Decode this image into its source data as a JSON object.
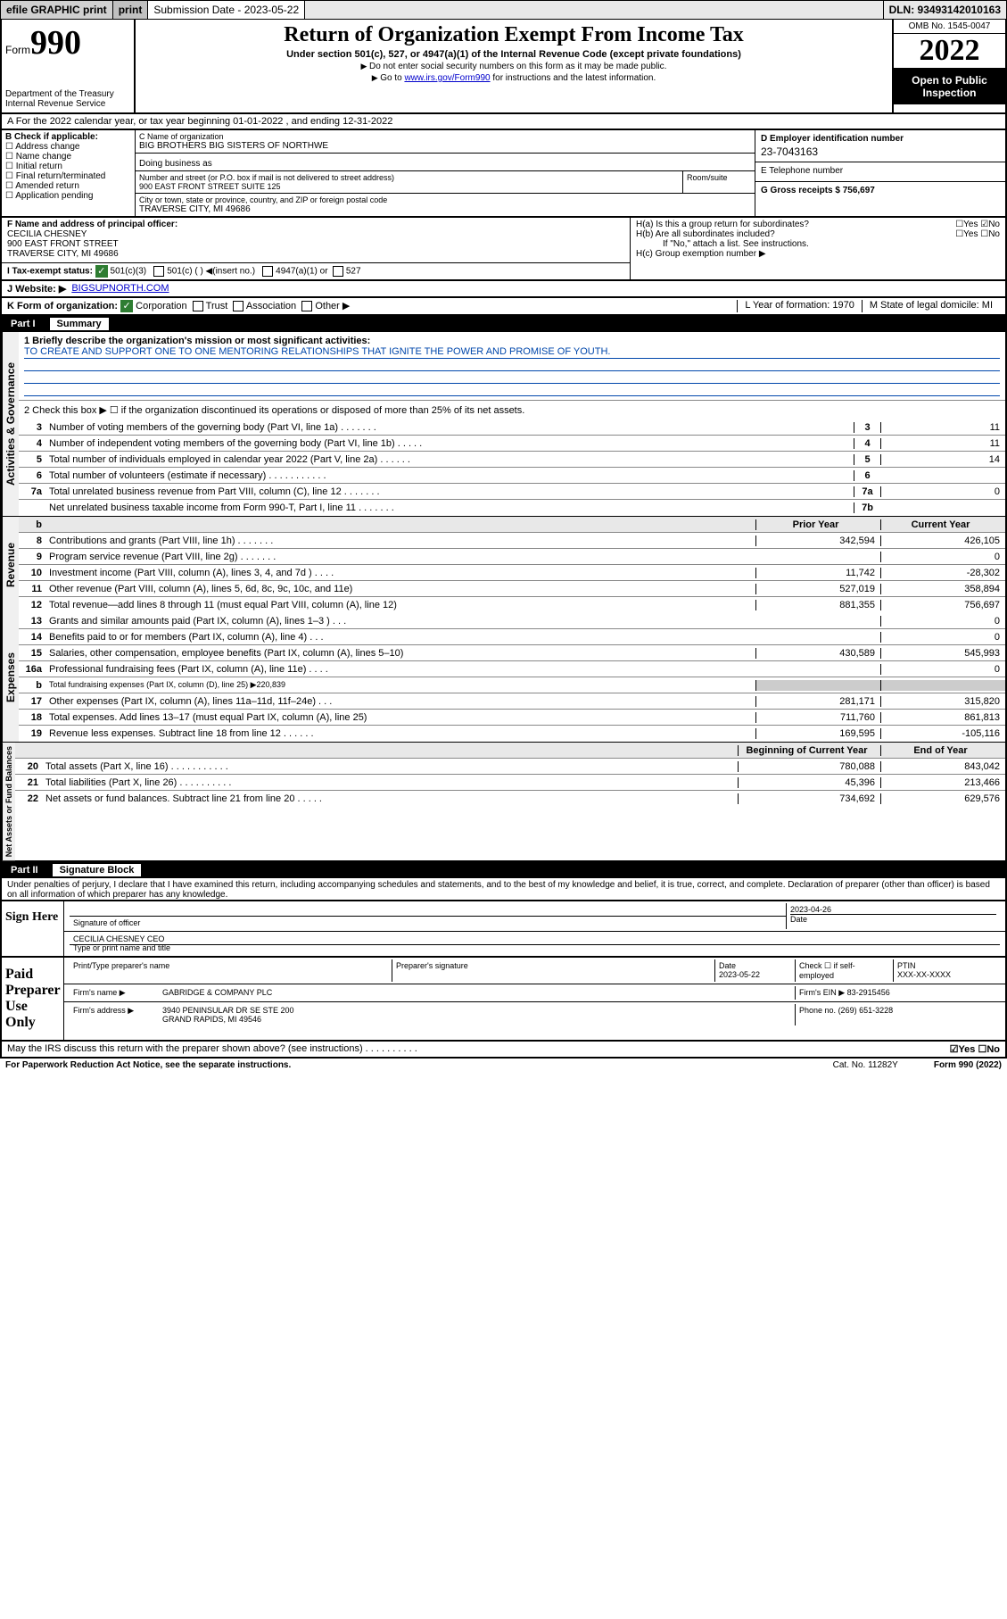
{
  "topbar": {
    "efile": "efile GRAPHIC print",
    "submission_label": "Submission Date - 2023-05-22",
    "dln": "DLN: 93493142010163"
  },
  "header": {
    "form_word": "Form",
    "form_num": "990",
    "dept": "Department of the Treasury Internal Revenue Service",
    "title": "Return of Organization Exempt From Income Tax",
    "subtitle": "Under section 501(c), 527, or 4947(a)(1) of the Internal Revenue Code (except private foundations)",
    "note1": "Do not enter social security numbers on this form as it may be made public.",
    "note2_pre": "Go to ",
    "note2_link": "www.irs.gov/Form990",
    "note2_post": " for instructions and the latest information.",
    "omb": "OMB No. 1545-0047",
    "year": "2022",
    "open": "Open to Public Inspection"
  },
  "rowA": "A For the 2022 calendar year, or tax year beginning 01-01-2022   , and ending 12-31-2022",
  "boxB": {
    "label": "B Check if applicable:",
    "items": [
      "Address change",
      "Name change",
      "Initial return",
      "Final return/terminated",
      "Amended return",
      "Application pending"
    ]
  },
  "boxC": {
    "label": "C Name of organization",
    "name": "BIG BROTHERS BIG SISTERS OF NORTHWE",
    "dba_label": "Doing business as",
    "addr_label": "Number and street (or P.O. box if mail is not delivered to street address)",
    "room_label": "Room/suite",
    "addr": "900 EAST FRONT STREET SUITE 125",
    "city_label": "City or town, state or province, country, and ZIP or foreign postal code",
    "city": "TRAVERSE CITY, MI  49686"
  },
  "boxD": {
    "label": "D Employer identification number",
    "val": "23-7043163"
  },
  "boxE": {
    "label": "E Telephone number",
    "val": ""
  },
  "boxG": {
    "label": "G Gross receipts $ 756,697"
  },
  "boxF": {
    "label": "F Name and address of principal officer:",
    "name": "CECILIA CHESNEY",
    "addr1": "900 EAST FRONT STREET",
    "addr2": "TRAVERSE CITY, MI  49686"
  },
  "boxH": {
    "a": "H(a)  Is this a group return for subordinates?",
    "a_ans": "☐Yes ☑No",
    "b": "H(b)  Are all subordinates included?",
    "b_ans": "☐Yes ☐No",
    "b_note": "If \"No,\" attach a list. See instructions.",
    "c": "H(c)  Group exemption number ▶"
  },
  "taxexempt": {
    "label": "I    Tax-exempt status:",
    "c3": "501(c)(3)",
    "c": "501(c) (  ) ◀(insert no.)",
    "a1": "4947(a)(1) or",
    "527": "527"
  },
  "rowJ": {
    "label": "J   Website: ▶",
    "val": "BIGSUPNORTH.COM"
  },
  "rowK": {
    "label": "K Form of organization:",
    "corp": "Corporation",
    "trust": "Trust",
    "assoc": "Association",
    "other": "Other ▶",
    "L": "L Year of formation: 1970",
    "M": "M State of legal domicile: MI"
  },
  "partI": {
    "title_pt": "Part I",
    "title": "Summary",
    "briefly_label": "1   Briefly describe the organization's mission or most significant activities:",
    "mission": "TO CREATE AND SUPPORT ONE TO ONE MENTORING RELATIONSHIPS THAT IGNITE THE POWER AND PROMISE OF YOUTH.",
    "line2": "2   Check this box ▶ ☐  if the organization discontinued its operations or disposed of more than 25% of its net assets.",
    "sections": {
      "gov": "Activities & Governance",
      "rev": "Revenue",
      "exp": "Expenses",
      "net": "Net Assets or Fund Balances"
    },
    "hdr_prior": "Prior Year",
    "hdr_curr": "Current Year",
    "hdr_begin": "Beginning of Current Year",
    "hdr_end": "End of Year",
    "gov_lines": [
      {
        "n": "3",
        "d": "Number of voting members of the governing body (Part VI, line 1a)  .    .    .    .    .    .    .",
        "b": "3",
        "v": "11"
      },
      {
        "n": "4",
        "d": "Number of independent voting members of the governing body (Part VI, line 1b)   .    .    .    .    .",
        "b": "4",
        "v": "11"
      },
      {
        "n": "5",
        "d": "Total number of individuals employed in calendar year 2022 (Part V, line 2a)   .    .    .    .    .    .",
        "b": "5",
        "v": "14"
      },
      {
        "n": "6",
        "d": "Total number of volunteers (estimate if necessary)   .    .    .    .    .    .    .    .    .    .    .",
        "b": "6",
        "v": ""
      },
      {
        "n": "7a",
        "d": "Total unrelated business revenue from Part VIII, column (C), line 12   .    .    .    .    .    .    .",
        "b": "7a",
        "v": "0"
      },
      {
        "n": "",
        "d": "Net unrelated business taxable income from Form 990-T, Part I, line 11   .    .    .    .    .    .    .",
        "b": "7b",
        "v": ""
      }
    ],
    "rev_lines": [
      {
        "n": "8",
        "d": "Contributions and grants (Part VIII, line 1h)   .    .    .    .    .    .    .",
        "p": "342,594",
        "c": "426,105"
      },
      {
        "n": "9",
        "d": "Program service revenue (Part VIII, line 2g)   .    .    .    .    .    .    .",
        "p": "",
        "c": "0"
      },
      {
        "n": "10",
        "d": "Investment income (Part VIII, column (A), lines 3, 4, and 7d )   .    .    .    .",
        "p": "11,742",
        "c": "-28,302"
      },
      {
        "n": "11",
        "d": "Other revenue (Part VIII, column (A), lines 5, 6d, 8c, 9c, 10c, and 11e)",
        "p": "527,019",
        "c": "358,894"
      },
      {
        "n": "12",
        "d": "Total revenue—add lines 8 through 11 (must equal Part VIII, column (A), line 12)",
        "p": "881,355",
        "c": "756,697"
      }
    ],
    "exp_lines": [
      {
        "n": "13",
        "d": "Grants and similar amounts paid (Part IX, column (A), lines 1–3 )   .    .    .",
        "p": "",
        "c": "0"
      },
      {
        "n": "14",
        "d": "Benefits paid to or for members (Part IX, column (A), line 4)   .    .    .",
        "p": "",
        "c": "0"
      },
      {
        "n": "15",
        "d": "Salaries, other compensation, employee benefits (Part IX, column (A), lines 5–10)",
        "p": "430,589",
        "c": "545,993"
      },
      {
        "n": "16a",
        "d": "Professional fundraising fees (Part IX, column (A), line 11e)   .    .    .    .",
        "p": "",
        "c": "0"
      },
      {
        "n": "b",
        "d": "Total fundraising expenses (Part IX, column (D), line 25) ▶220,839",
        "p": null,
        "c": null,
        "gray": true
      },
      {
        "n": "17",
        "d": "Other expenses (Part IX, column (A), lines 11a–11d, 11f–24e)   .    .    .",
        "p": "281,171",
        "c": "315,820"
      },
      {
        "n": "18",
        "d": "Total expenses. Add lines 13–17 (must equal Part IX, column (A), line 25)",
        "p": "711,760",
        "c": "861,813"
      },
      {
        "n": "19",
        "d": "Revenue less expenses. Subtract line 18 from line 12   .    .    .    .    .    .",
        "p": "169,595",
        "c": "-105,116"
      }
    ],
    "net_lines": [
      {
        "n": "20",
        "d": "Total assets (Part X, line 16)   .    .    .    .    .    .    .    .    .    .    .",
        "p": "780,088",
        "c": "843,042"
      },
      {
        "n": "21",
        "d": "Total liabilities (Part X, line 26)   .    .    .    .    .    .    .    .    .    .",
        "p": "45,396",
        "c": "213,466"
      },
      {
        "n": "22",
        "d": "Net assets or fund balances. Subtract line 21 from line 20   .    .    .    .    .",
        "p": "734,692",
        "c": "629,576"
      }
    ]
  },
  "partII": {
    "title_pt": "Part II",
    "title": "Signature Block",
    "decl": "Under penalties of perjury, I declare that I have examined this return, including accompanying schedules and statements, and to the best of my knowledge and belief, it is true, correct, and complete. Declaration of preparer (other than officer) is based on all information of which preparer has any knowledge.",
    "sign_here": "Sign Here",
    "sig_officer": "Signature of officer",
    "sig_date": "2023-04-26",
    "date_lbl": "Date",
    "officer_name": "CECILIA CHESNEY CEO",
    "officer_lbl": "Type or print name and title",
    "paid": "Paid Preparer Use Only",
    "prep_name_lbl": "Print/Type preparer's name",
    "prep_sig_lbl": "Preparer's signature",
    "prep_date_lbl": "Date",
    "prep_date": "2023-05-22",
    "check_self": "Check ☐ if self-employed",
    "ptin_lbl": "PTIN",
    "ptin": "XXX-XX-XXXX",
    "firm_name_lbl": "Firm's name    ▶",
    "firm_name": "GABRIDGE & COMPANY PLC",
    "firm_ein_lbl": "Firm's EIN ▶",
    "firm_ein": "83-2915456",
    "firm_addr_lbl": "Firm's address ▶",
    "firm_addr1": "3940 PENINSULAR DR SE STE 200",
    "firm_addr2": "GRAND RAPIDS, MI  49546",
    "phone_lbl": "Phone no.",
    "phone": "(269) 651-3228",
    "irs_q": "May the IRS discuss this return with the preparer shown above? (see instructions)   .    .    .    .    .    .    .    .    .    .",
    "irs_ans": "☑Yes  ☐No"
  },
  "footer": {
    "pra": "For Paperwork Reduction Act Notice, see the separate instructions.",
    "cat": "Cat. No. 11282Y",
    "form": "Form 990 (2022)"
  },
  "colors": {
    "link": "#0000cc",
    "mission": "#0047ab",
    "checkbox_green": "#2e7d32",
    "gray_bg": "#e8e8e8"
  }
}
